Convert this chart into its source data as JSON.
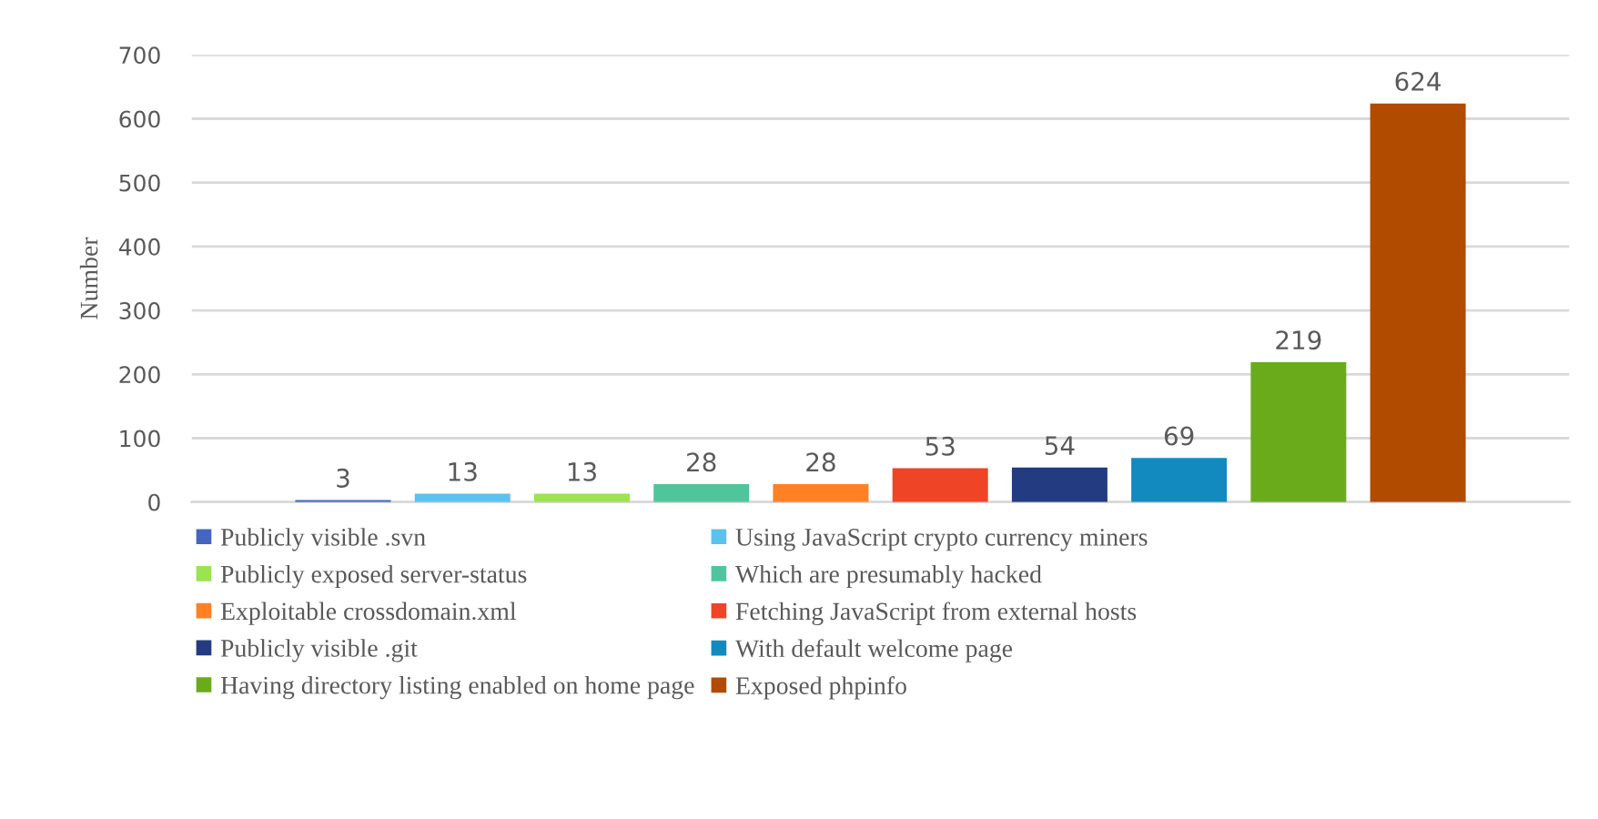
{
  "chart_data": {
    "type": "bar",
    "ylabel": "Number",
    "categories": [
      null
    ],
    "series": [
      {
        "name": "Publicly visible .svn",
        "color": "#4566c0",
        "values": [
          3
        ]
      },
      {
        "name": "Using JavaScript crypto currency miners",
        "color": "#5bc2ee",
        "values": [
          13
        ]
      },
      {
        "name": "Publicly exposed server-status",
        "color": "#9ce251",
        "values": [
          13
        ]
      },
      {
        "name": "Which are presumably hacked",
        "color": "#4fc59c",
        "values": [
          28
        ]
      },
      {
        "name": "Exploitable crossdomain.xml",
        "color": "#ff8124",
        "values": [
          28
        ]
      },
      {
        "name": "Fetching JavaScript from external hosts",
        "color": "#ef4426",
        "values": [
          53
        ]
      },
      {
        "name": "Publicly visible .git",
        "color": "#233b80",
        "values": [
          54
        ]
      },
      {
        "name": "With default welcome page",
        "color": "#128ac0",
        "values": [
          69
        ]
      },
      {
        "name": "Having directory listing enabled on home page",
        "color": "#6aab1c",
        "values": [
          219
        ]
      },
      {
        "name": "Exposed phpinfo",
        "color": "#b04b00",
        "values": [
          624
        ]
      }
    ],
    "ylim": [
      0,
      700
    ],
    "yticks": [
      0,
      100,
      200,
      300,
      400,
      500,
      600,
      700
    ],
    "grid": "y",
    "legend": "bottom",
    "data_labels": true
  }
}
